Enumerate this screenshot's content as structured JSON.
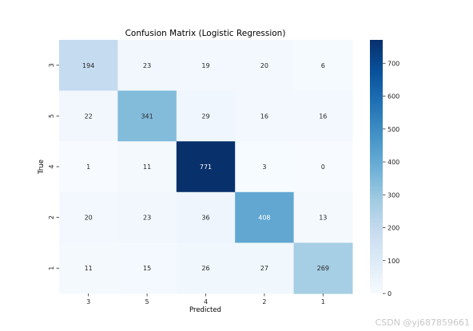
{
  "chart_data": {
    "type": "heatmap",
    "title": "Confusion Matrix (Logistic Regression)",
    "xlabel": "Predicted",
    "ylabel": "True",
    "x_categories": [
      "3",
      "5",
      "4",
      "2",
      "1"
    ],
    "y_categories": [
      "3",
      "5",
      "4",
      "2",
      "1"
    ],
    "values": [
      [
        194,
        23,
        19,
        20,
        6
      ],
      [
        22,
        341,
        29,
        16,
        16
      ],
      [
        1,
        11,
        771,
        3,
        0
      ],
      [
        20,
        23,
        36,
        408,
        13
      ],
      [
        11,
        15,
        26,
        27,
        269
      ]
    ],
    "colormap": "Blues",
    "colorbar": {
      "range": [
        0,
        771
      ],
      "ticks": [
        0,
        100,
        200,
        300,
        400,
        500,
        600,
        700
      ],
      "tick_labels": [
        "0",
        "100",
        "200",
        "300",
        "400",
        "500",
        "600",
        "700"
      ]
    },
    "colors": {
      "low": "#f7fbff",
      "high": "#08306b",
      "text_on_dark": "#ffffff",
      "text_on_light": "#262626"
    }
  },
  "watermark": "CSDN @yj687859661"
}
